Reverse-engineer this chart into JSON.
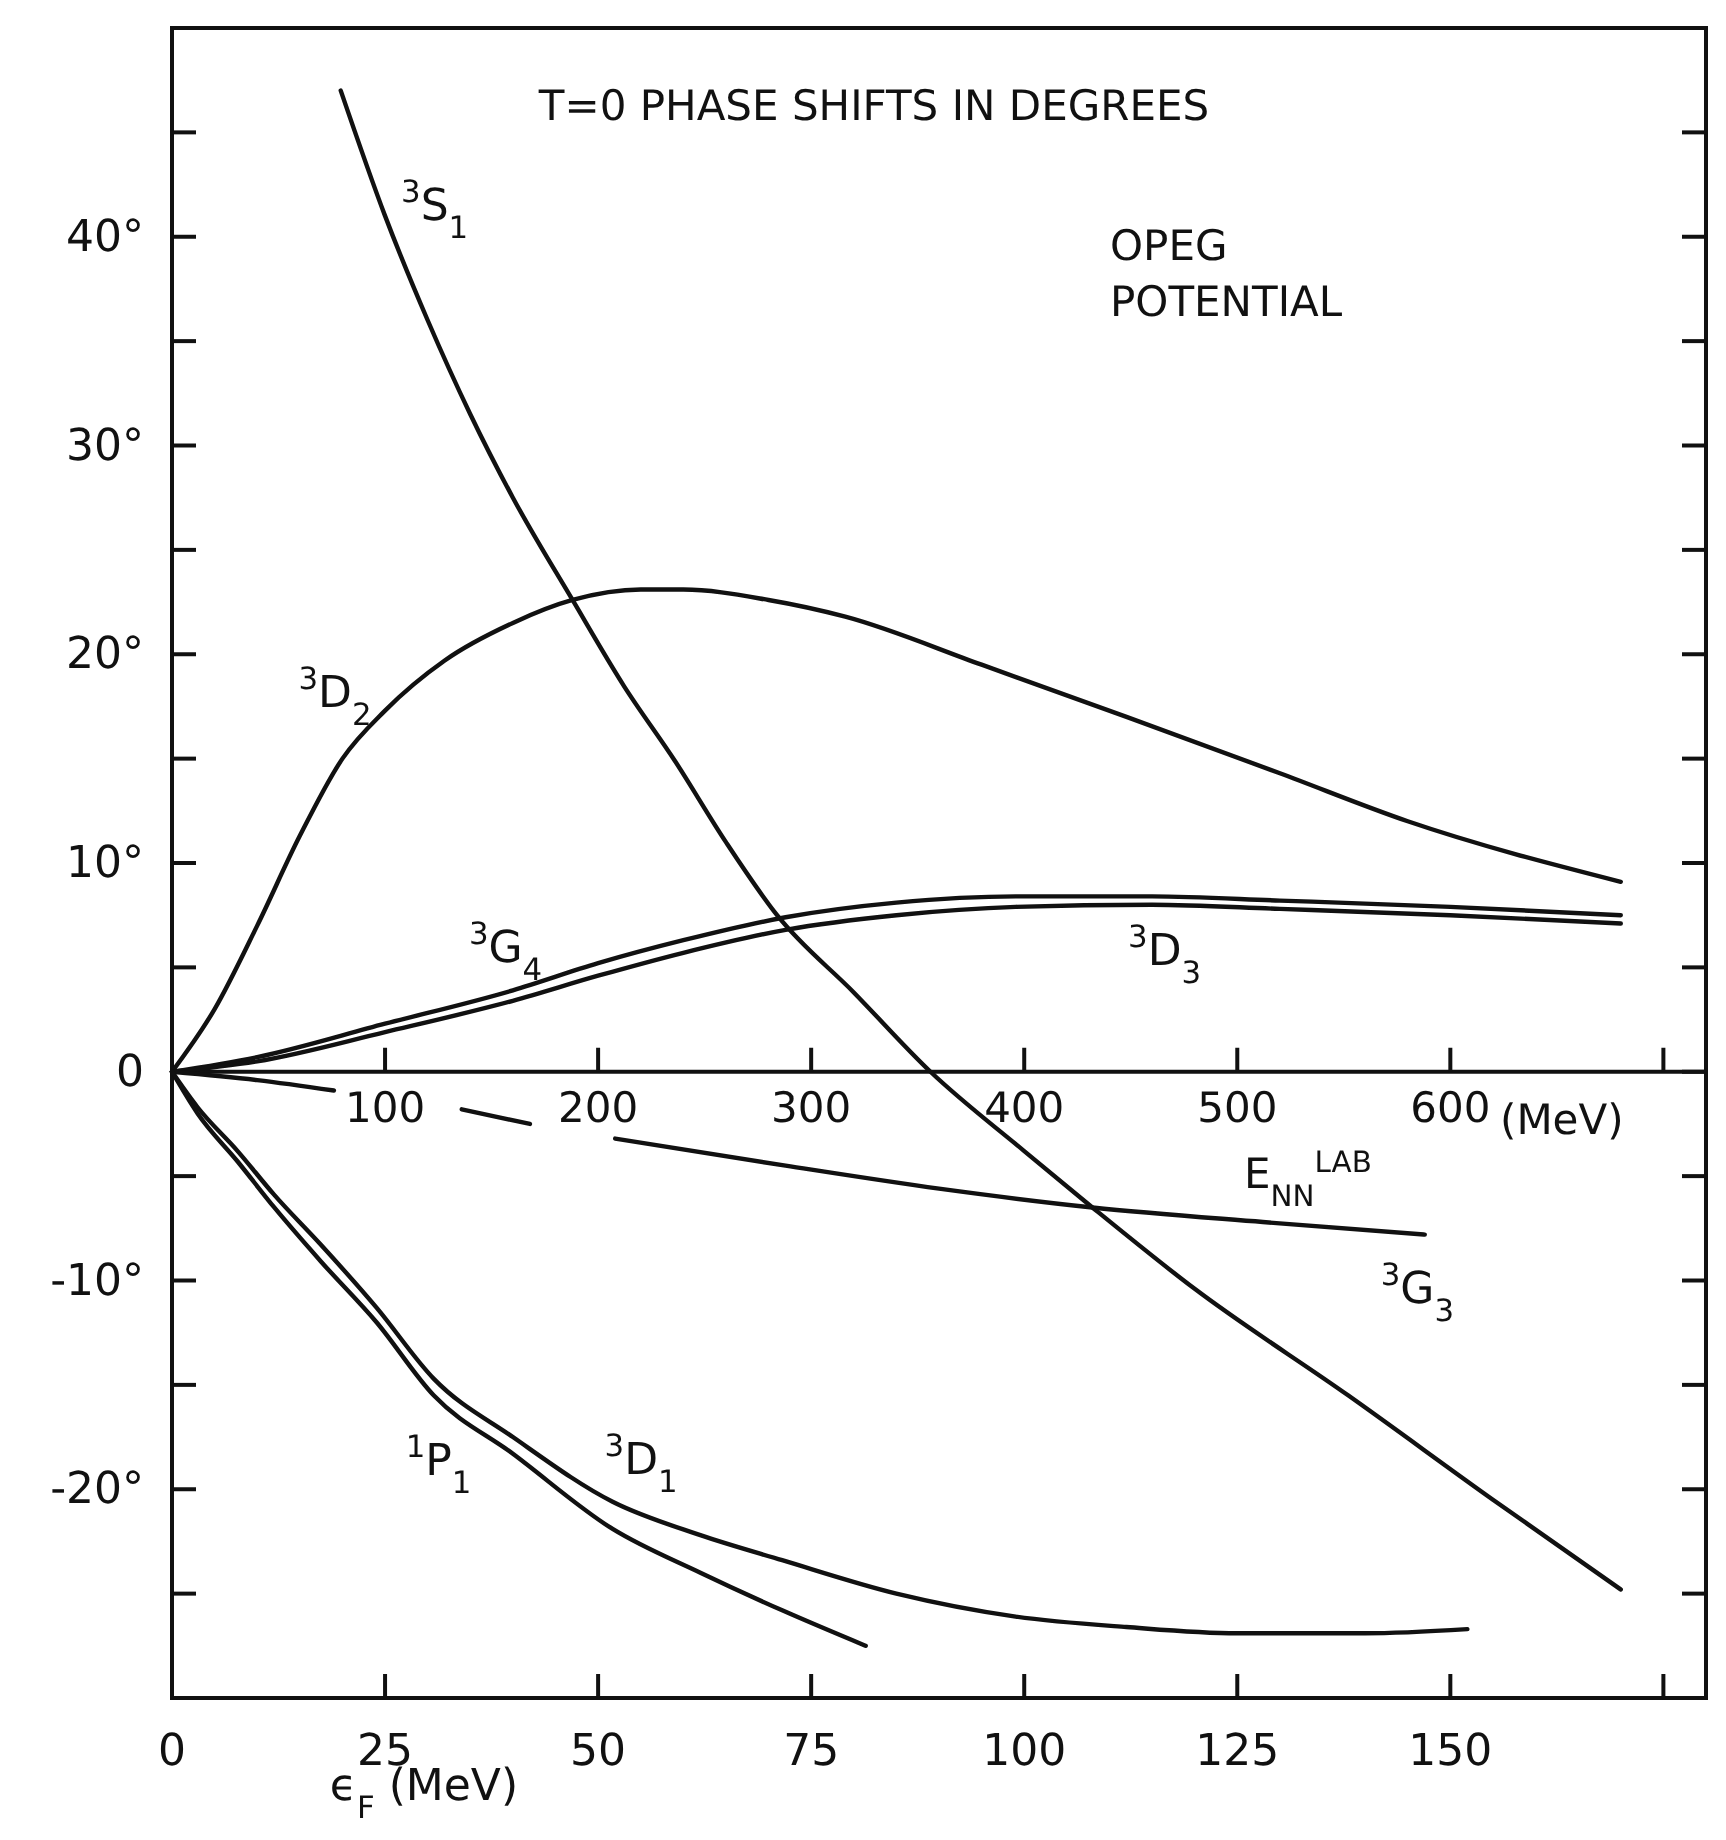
{
  "chart_data": {
    "type": "line",
    "title": "T=0 PHASE SHIFTS IN DEGREES",
    "xlabel": "ϵ$_{F}$ (MeV)",
    "x2label": "(MeV)",
    "annotations": [
      "OPEG\nPOTENTIAL",
      "E$_{NN}$$^{LAB}$"
    ],
    "xlim": [
      0,
      180
    ],
    "xticks": [
      0,
      25,
      50,
      75,
      100,
      125,
      150,
      {
        "value": 175,
        "label": null
      }
    ],
    "x2lim": [
      0,
      720
    ],
    "x2ticks": [
      100,
      200,
      300,
      400,
      500,
      600,
      {
        "value": 700,
        "label": null
      }
    ],
    "ylim": [
      -30,
      50
    ],
    "yticks": [
      {
        "value": -25,
        "label": null
      },
      {
        "value": -20,
        "label": "-20°"
      },
      {
        "value": -15,
        "label": null
      },
      {
        "value": -10,
        "label": "-10°"
      },
      {
        "value": -5,
        "label": null
      },
      0,
      {
        "value": 5,
        "label": null
      },
      {
        "value": 10,
        "label": "10°"
      },
      {
        "value": 15,
        "label": null
      },
      {
        "value": 20,
        "label": "20°"
      },
      {
        "value": 25,
        "label": null
      },
      {
        "value": 30,
        "label": "30°"
      },
      {
        "value": 35,
        "label": null
      },
      {
        "value": 40,
        "label": "40°"
      },
      {
        "value": 45,
        "label": null
      }
    ],
    "series": [
      {
        "name": "$^{3}$S$_{1}$",
        "color": "#111111",
        "x": [
          19.8,
          25,
          30,
          35,
          40,
          47,
          53,
          59,
          65,
          71,
          80,
          89,
          100,
          108,
          120,
          138,
          155,
          170
        ],
        "values": [
          47,
          41,
          36,
          31.5,
          27.5,
          22.6,
          18.5,
          14.9,
          11,
          7.5,
          3.8,
          0,
          -3.8,
          -6.5,
          -10.4,
          -15.5,
          -20.5,
          -24.8
        ]
      },
      {
        "name": "$^{3}$D$_{2}$",
        "color": "#111111",
        "x": [
          0,
          5,
          10,
          15,
          20,
          25,
          32,
          40,
          47,
          55,
          60,
          70,
          79,
          95,
          112,
          130,
          145,
          170
        ],
        "values": [
          0,
          3,
          7,
          11.3,
          15,
          17.3,
          19.7,
          21.5,
          22.6,
          23.1,
          23.1,
          22.6,
          21.8,
          19.5,
          17,
          14.3,
          12,
          9.1
        ]
      },
      {
        "name": "$^{3}$G$_{4}$",
        "color": "#111111",
        "x": [
          0,
          10,
          25,
          40,
          50,
          60,
          72,
          85,
          99,
          115,
          130,
          150,
          170
        ],
        "values": [
          0,
          0.7,
          2.3,
          3.9,
          5.2,
          6.3,
          7.4,
          8.1,
          8.4,
          8.4,
          8.2,
          7.9,
          7.5
        ]
      },
      {
        "name": "$^{3}$D$_{3}$",
        "color": "#111111",
        "x": [
          0,
          10,
          25,
          40,
          50,
          60,
          72,
          85,
          99,
          115,
          130,
          150,
          170
        ],
        "values": [
          0,
          0.5,
          1.9,
          3.4,
          4.6,
          5.7,
          6.8,
          7.5,
          7.9,
          8,
          7.8,
          7.5,
          7.1
        ]
      },
      {
        "name": "$^{3}$G$_{3}$",
        "color": "#111111",
        "x": [
          0,
          10,
          19,
          26,
          34,
          42,
          47,
          52,
          72,
          90,
          108,
          128,
          147
        ],
        "values": [
          0,
          -0.4,
          -0.9,
          null,
          -1.8,
          -2.5,
          null,
          -3.2,
          -4.5,
          -5.6,
          -6.5,
          -7.2,
          -7.8
        ]
      },
      {
        "name": "$^{1}$P$_{1}$",
        "color": "#111111",
        "x": [
          0,
          3,
          7.7,
          12,
          17.5,
          24,
          30.7,
          40,
          51.7,
          62,
          71.6,
          81.4
        ],
        "values": [
          0,
          -2,
          -4.3,
          -6.5,
          -9.1,
          -12,
          -15.5,
          -18.3,
          -21.9,
          -24,
          -25.8,
          -27.5
        ]
      },
      {
        "name": "$^{3}$D$_{1}$",
        "color": "#111111",
        "x": [
          0,
          3,
          7.7,
          12,
          17.5,
          24,
          30.7,
          40,
          51.7,
          62,
          71.6,
          85,
          99,
          112,
          125,
          140,
          152
        ],
        "values": [
          0,
          -1.7,
          -3.8,
          -5.9,
          -8.3,
          -11.3,
          -14.7,
          -17.5,
          -20.6,
          -22.2,
          -23.4,
          -25,
          -26.1,
          -26.6,
          -26.9,
          -26.9,
          -26.7
        ]
      }
    ]
  }
}
